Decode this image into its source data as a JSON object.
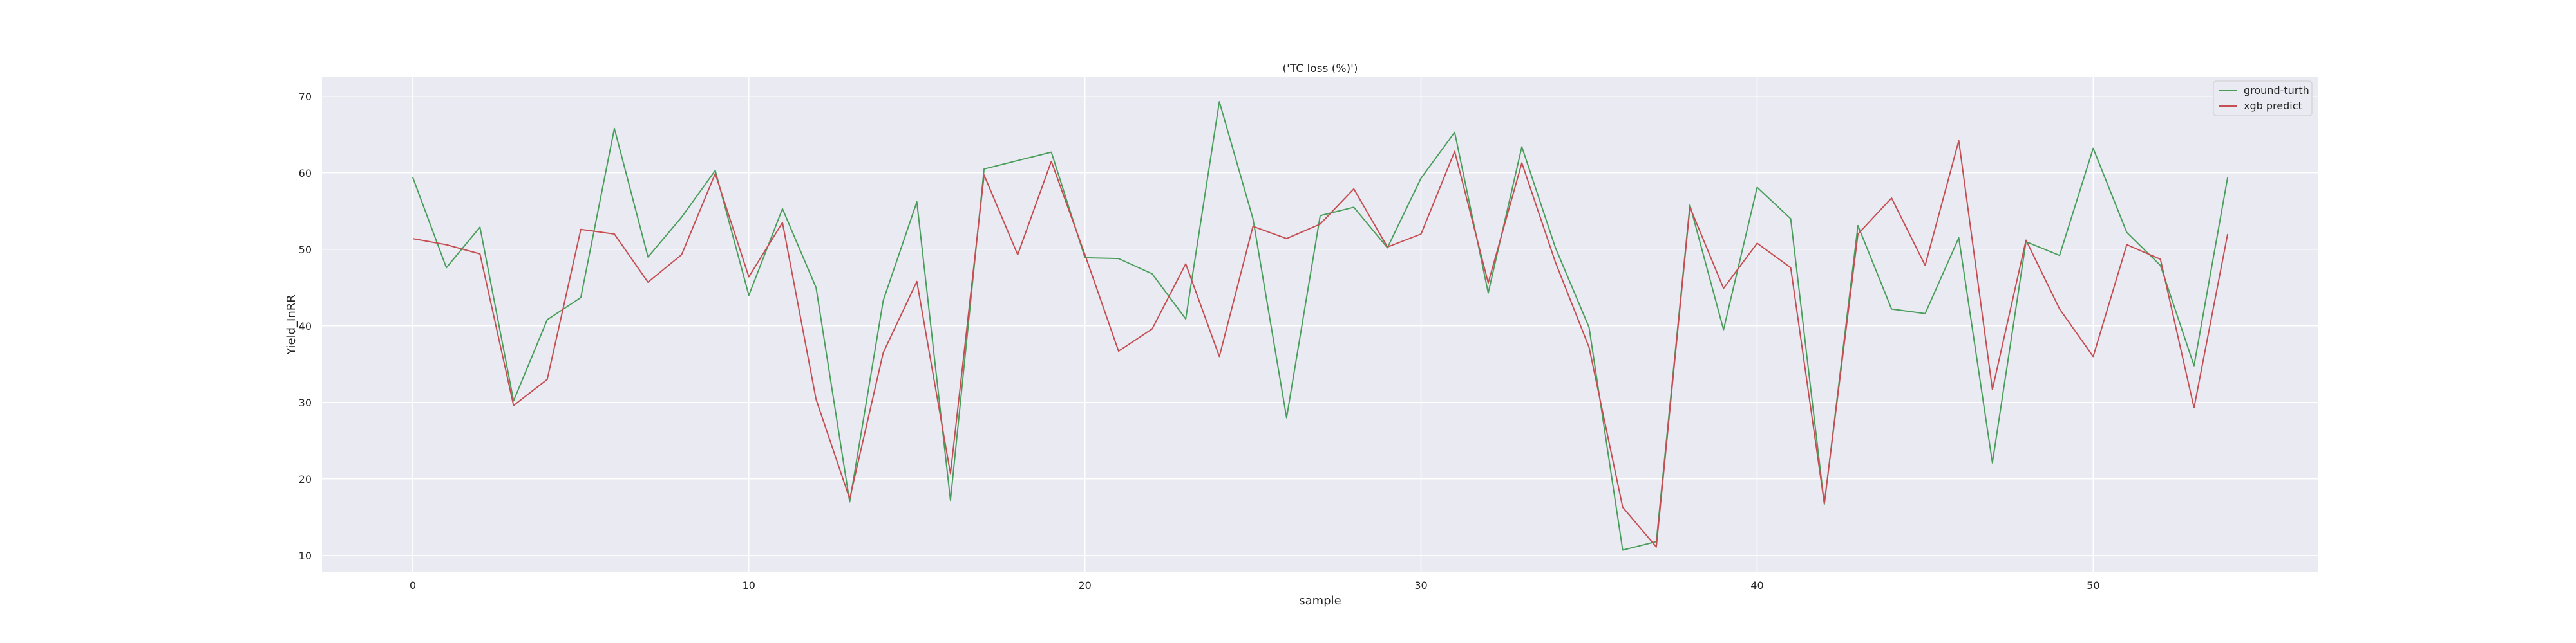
{
  "chart_data": {
    "type": "line",
    "title": "('TC loss (%)')",
    "xlabel": "sample",
    "ylabel": "Yield_InRR",
    "xlim": [
      -2.7,
      56.7
    ],
    "ylim": [
      7.8,
      72.5
    ],
    "xticks": [
      0,
      10,
      20,
      30,
      40,
      50
    ],
    "yticks": [
      10,
      20,
      30,
      40,
      50,
      60,
      70
    ],
    "grid": true,
    "legend_position": "top-right",
    "x": [
      0,
      1,
      2,
      3,
      4,
      5,
      6,
      7,
      8,
      9,
      10,
      11,
      12,
      13,
      14,
      15,
      16,
      17,
      18,
      19,
      20,
      21,
      22,
      23,
      24,
      25,
      26,
      27,
      28,
      29,
      30,
      31,
      32,
      33,
      34,
      35,
      36,
      37,
      38,
      39,
      40,
      41,
      42,
      43,
      44,
      45,
      46,
      47,
      48,
      49,
      50,
      51,
      52,
      53,
      54
    ],
    "series": [
      {
        "name": "ground-turth",
        "color": "#4a9e5c",
        "values": [
          59.4,
          47.6,
          52.9,
          30.2,
          40.8,
          43.7,
          65.8,
          49.0,
          54.2,
          60.3,
          44.0,
          55.3,
          45.0,
          17.0,
          43.3,
          56.2,
          17.2,
          60.5,
          61.6,
          62.7,
          48.9,
          48.8,
          46.8,
          40.9,
          69.3,
          54.0,
          28.0,
          54.4,
          55.5,
          50.2,
          59.3,
          65.3,
          44.3,
          63.4,
          50.2,
          39.8,
          10.7,
          11.8,
          55.8,
          39.5,
          58.1,
          54.0,
          16.7,
          53.1,
          42.2,
          41.6,
          51.5,
          22.1,
          51.0,
          49.2,
          63.2,
          52.2,
          47.9,
          34.8,
          59.4
        ]
      },
      {
        "name": "xgb predict",
        "color": "#c44e52",
        "values": [
          51.4,
          50.6,
          49.4,
          29.6,
          33.0,
          52.6,
          52.0,
          45.7,
          49.3,
          59.9,
          46.4,
          53.5,
          30.4,
          17.4,
          36.5,
          45.8,
          20.7,
          59.7,
          49.3,
          61.5,
          49.3,
          36.7,
          39.6,
          48.1,
          36.0,
          53.0,
          51.4,
          53.3,
          57.9,
          50.3,
          52.0,
          62.8,
          45.6,
          61.3,
          48.3,
          37.2,
          16.3,
          11.1,
          55.5,
          44.9,
          50.8,
          47.6,
          16.8,
          52.0,
          56.7,
          47.9,
          64.2,
          31.7,
          51.2,
          42.2,
          36.0,
          50.6,
          48.7,
          29.3,
          52.0
        ]
      }
    ]
  }
}
